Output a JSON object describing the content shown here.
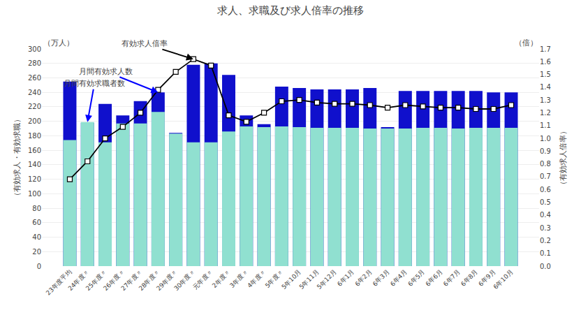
{
  "chart_data": {
    "type": "bar",
    "title": "求人、求職及び求人倍率の推移",
    "ylabel": "（有効求人・有効求職）",
    "y2label": "（有効求人倍率）",
    "annotations": [
      "（万人）",
      "（倍）",
      "月間有効求職者数",
      "月間有効求人数",
      "有効求人倍率"
    ],
    "categories": [
      "23年度平均",
      "24年度〃",
      "25年度〃",
      "26年度〃",
      "27年度〃",
      "28年度〃",
      "29年度〃",
      "30年度〃",
      "元年度〃",
      "2年度〃",
      "3年度〃",
      "4年度〃",
      "5年度〃",
      "5年10月",
      "5年11月",
      "5年12月",
      "6年1月",
      "6年2月",
      "6年3月",
      "6年4月",
      "6年5月",
      "6年6月",
      "6年7月",
      "6年8月",
      "6年9月",
      "6年10月"
    ],
    "series": [
      {
        "type": "bar",
        "color": "#1010CC",
        "values": [
          255,
          198,
          224,
          208,
          228,
          240,
          184,
          278,
          280,
          264,
          208,
          196,
          248,
          246,
          244,
          244,
          244,
          246,
          192,
          242,
          242,
          242,
          242,
          242,
          240,
          240
        ]
      },
      {
        "type": "bar",
        "color": "#90E0D0",
        "values": [
          174,
          199,
          171,
          197,
          197,
          213,
          183,
          171,
          171,
          186,
          193,
          192,
          193,
          192,
          191,
          191,
          191,
          190,
          190,
          190,
          191,
          191,
          190,
          191,
          191,
          191
        ]
      },
      {
        "type": "line",
        "color": "#000000",
        "marker": "square",
        "axis": "y2",
        "values": [
          0.68,
          0.82,
          1.0,
          1.09,
          1.2,
          1.38,
          1.52,
          1.62,
          1.57,
          1.18,
          1.13,
          1.2,
          1.29,
          1.3,
          1.28,
          1.27,
          1.27,
          1.26,
          1.24,
          1.26,
          1.25,
          1.24,
          1.24,
          1.23,
          1.23,
          1.26
        ]
      }
    ],
    "stacked": false,
    "ylim": [
      0,
      300
    ],
    "yticks": [
      0,
      20,
      40,
      60,
      80,
      100,
      120,
      140,
      160,
      180,
      200,
      220,
      240,
      260,
      280,
      300
    ],
    "y2lim": [
      0,
      1.7
    ],
    "y2ticks": [
      {
        "value": 0,
        "label": "0.0"
      },
      0.1,
      0.2,
      0.3,
      0.4,
      0.5,
      0.6,
      0.7,
      0.8,
      0.9,
      {
        "value": 1,
        "label": "1.0"
      },
      1.1,
      1.2,
      1.3,
      1.4,
      1.5,
      1.6,
      1.7
    ],
    "grid": true
  }
}
